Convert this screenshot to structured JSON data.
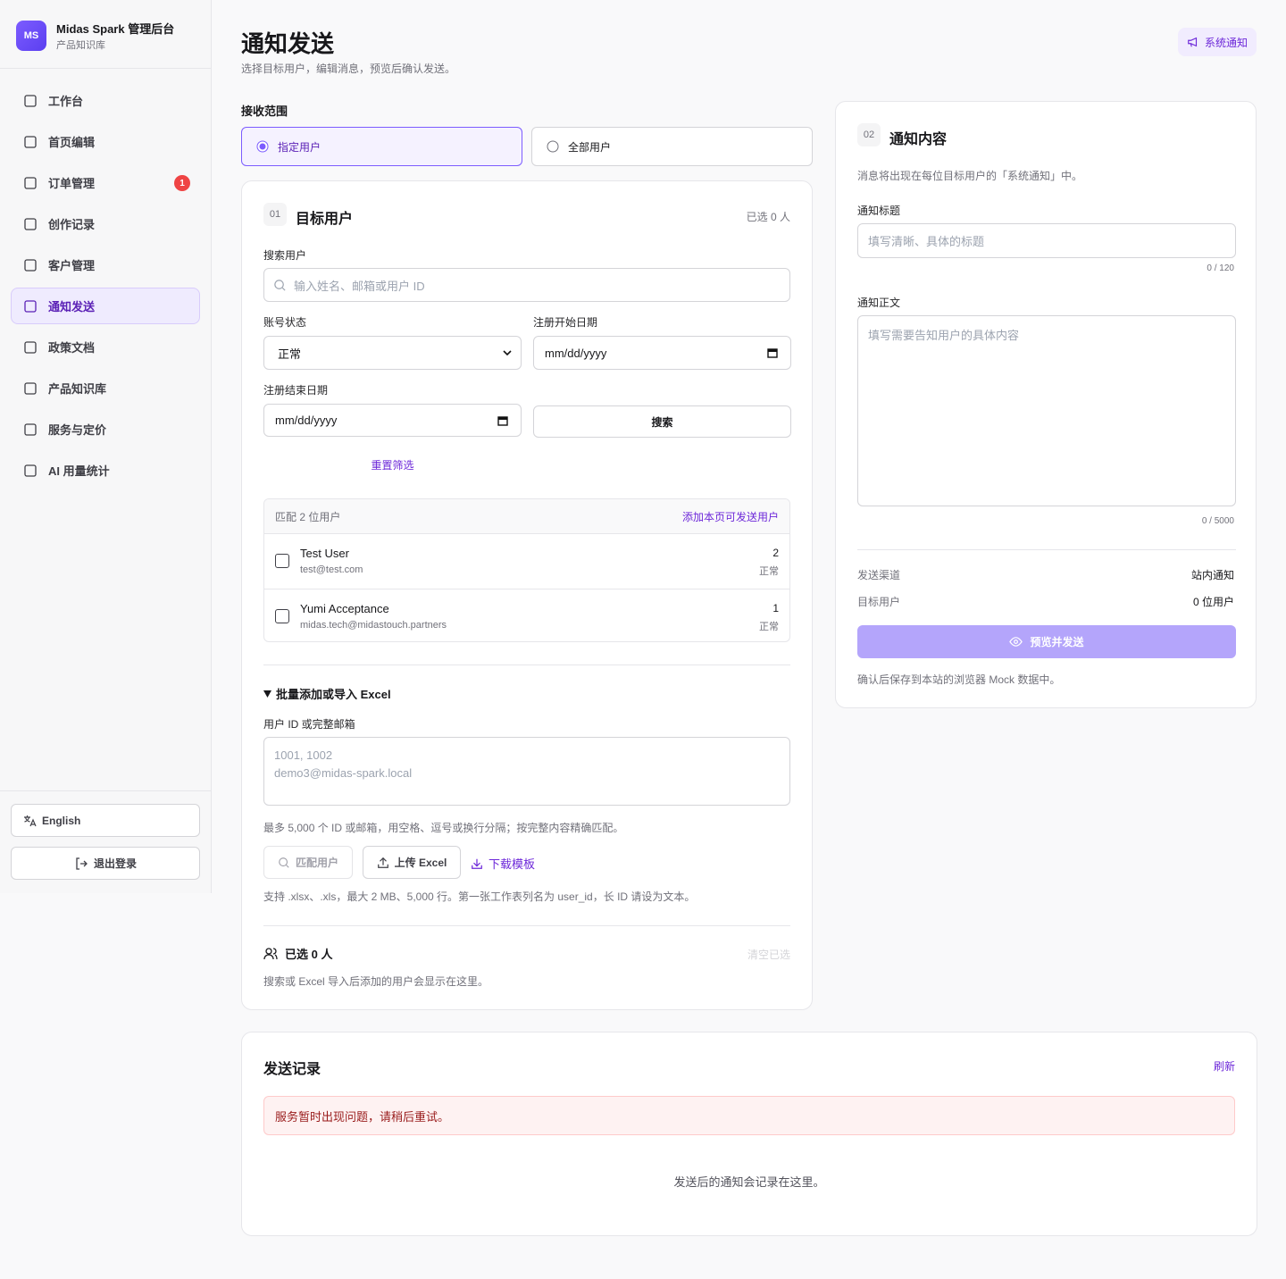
{
  "sidebar": {
    "logo": "MS",
    "brand": "Midas Spark 管理后台",
    "brand_sub": "产品知识库",
    "nav": [
      {
        "label": "工作台"
      },
      {
        "label": "首页编辑"
      },
      {
        "label": "订单管理",
        "badge": 1
      },
      {
        "label": "创作记录"
      },
      {
        "label": "客户管理"
      },
      {
        "label": "通知发送",
        "active": true
      },
      {
        "label": "政策文档"
      },
      {
        "label": "产品知识库"
      },
      {
        "label": "服务与定价"
      },
      {
        "label": "AI 用量统计"
      }
    ],
    "language": "English",
    "logout": "退出登录"
  },
  "header": {
    "title": "通知发送",
    "subtitle": "选择目标用户，编辑消息，预览后确认发送。",
    "badge": "系统通知"
  },
  "scope": {
    "label": "接收范围",
    "options": [
      {
        "label": "指定用户",
        "selected": true
      },
      {
        "label": "全部用户",
        "selected": false
      }
    ]
  },
  "target": {
    "step": "01",
    "title": "目标用户",
    "selected_count": "已选 0 人",
    "search_label": "搜索用户",
    "search_placeholder": "输入姓名、邮箱或用户 ID",
    "status_label": "账号状态",
    "status_value": "正常",
    "start_label": "注册开始日期",
    "start_placeholder": "mm/dd/yyyy",
    "end_label": "注册结束日期",
    "end_placeholder": "mm/dd/yyyy",
    "search_button": "搜索",
    "reset": "重置筛选",
    "results": {
      "summary": "匹配 2 位用户",
      "add_all": "添加本页可发送用户",
      "rows": [
        {
          "name": "Test User",
          "email": "test@test.com",
          "id": 2,
          "status": "正常"
        },
        {
          "name": "Yumi Acceptance",
          "email": "midas.tech@midastouch.partners",
          "id": 1,
          "status": "正常"
        }
      ]
    },
    "bulk": {
      "title": "批量添加或导入 Excel",
      "input_label": "用户 ID 或完整邮箱",
      "placeholder": "1001, 1002\ndemo3@midas-spark.local",
      "hint": "最多 5,000 个 ID 或邮箱，用空格、逗号或换行分隔；按完整内容精确匹配。",
      "match_button": "匹配用户",
      "upload_button": "上传 Excel",
      "download": "下载模板",
      "note": "支持 .xlsx、.xls，最大 2 MB、5,000 行。第一张工作表列名为 user_id，长 ID 请设为文本。"
    },
    "selected": {
      "title": "已选 0 人",
      "clear": "清空已选",
      "empty": "搜索或 Excel 导入后添加的用户会显示在这里。"
    }
  },
  "content": {
    "step": "02",
    "title": "通知内容",
    "desc": "消息将出现在每位目标用户的「系统通知」中。",
    "title_label": "通知标题",
    "title_placeholder": "填写清晰、具体的标题",
    "title_count": "0 / 120",
    "body_label": "通知正文",
    "body_placeholder": "填写需要告知用户的具体内容",
    "body_count": "0 / 5000",
    "channel_label": "发送渠道",
    "channel_value": "站内通知",
    "target_label": "目标用户",
    "target_value": "0 位用户",
    "submit": "预览并发送",
    "footnote": "确认后保存到本站的浏览器 Mock 数据中。"
  },
  "history": {
    "title": "发送记录",
    "refresh": "刷新",
    "error": "服务暂时出现问题，请稍后重试。",
    "empty": "发送后的通知会记录在这里。"
  }
}
